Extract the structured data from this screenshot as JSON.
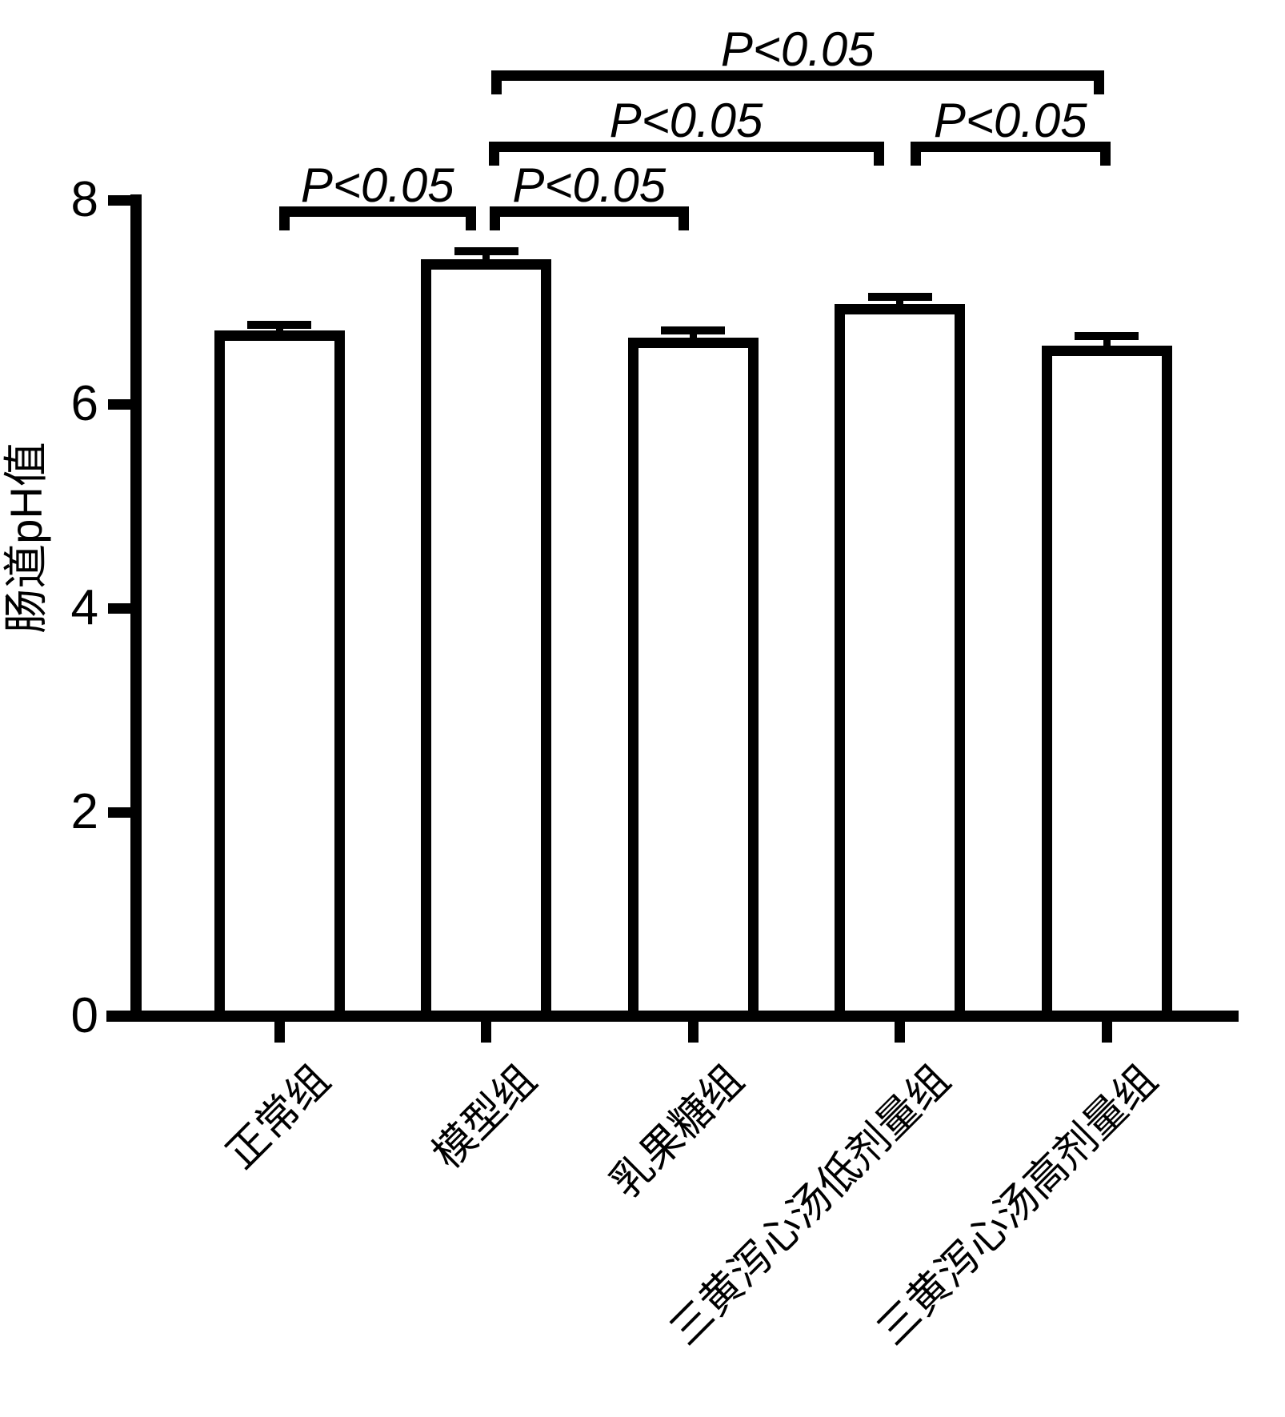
{
  "chart_data": {
    "type": "bar",
    "title": "",
    "xlabel": "",
    "ylabel": "肠道pH值",
    "ylim": [
      0,
      8
    ],
    "yticks": [
      0,
      2,
      4,
      6,
      8
    ],
    "categories": [
      "正常组",
      "模型组",
      "乳果糖组",
      "三黄泻心汤低剂量组",
      "三黄泻心汤高剂量组"
    ],
    "series": [
      {
        "name": "肠道pH值",
        "values": [
          6.72,
          7.42,
          6.65,
          6.98,
          6.57
        ],
        "errors": [
          0.06,
          0.08,
          0.07,
          0.07,
          0.1
        ]
      }
    ],
    "bar_fill_color": "#ffffff",
    "bar_stroke_color": "#000000",
    "background_color": "#ffffff",
    "grid": "off",
    "legend": "none",
    "error_bars": "upper-only",
    "significance_brackets": [
      {
        "from_category": "正常组",
        "to_category": "模型组",
        "from": 0,
        "to": 1,
        "label": "P<0.05",
        "level": 3
      },
      {
        "from_category": "模型组",
        "to_category": "乳果糖组",
        "from": 1,
        "to": 2,
        "label": "P<0.05",
        "level": 3
      },
      {
        "from_category": "模型组",
        "to_category": "三黄泻心汤低剂量组",
        "from": 1,
        "to": 3,
        "label": "P<0.05",
        "level": 2
      },
      {
        "from_category": "三黄泻心汤低剂量组",
        "to_category": "三黄泻心汤高剂量组",
        "from": 3,
        "to": 4,
        "label": "P<0.05",
        "level": 2
      },
      {
        "from_category": "模型组",
        "to_category": "三黄泻心汤高剂量组",
        "from": 1,
        "to": 4,
        "label": "P<0.05",
        "level": 1
      }
    ]
  }
}
